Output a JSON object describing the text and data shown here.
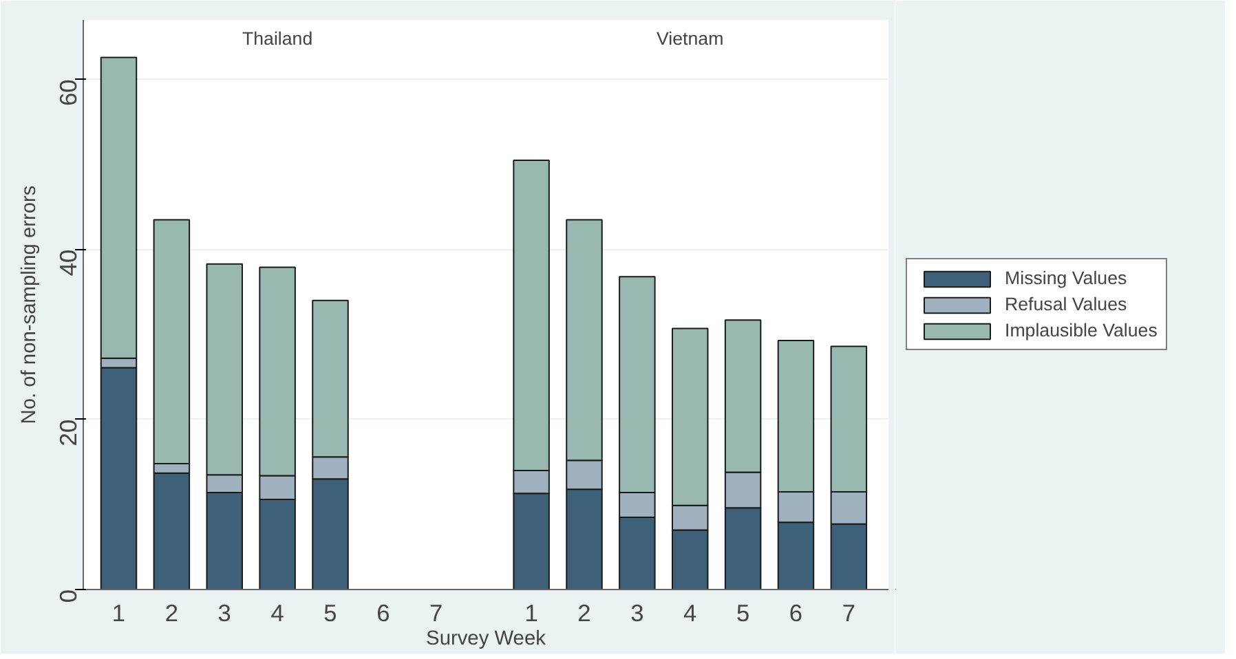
{
  "chart_data": {
    "type": "bar",
    "stacked": true,
    "xlabel": "Survey Week",
    "ylabel": "No. of non-sampling errors",
    "categories": [
      "1",
      "2",
      "3",
      "4",
      "5",
      "6",
      "7",
      "1",
      "2",
      "3",
      "4",
      "5",
      "6",
      "7"
    ],
    "series": [
      {
        "name": "Missing Values",
        "color": "#3e6079",
        "values": [
          26.1,
          13.7,
          11.4,
          10.6,
          13.0,
          null,
          null,
          11.3,
          11.8,
          8.5,
          7.0,
          9.6,
          7.9,
          7.7
        ]
      },
      {
        "name": "Refusal Values",
        "color": "#9fb0bf",
        "values": [
          1.1,
          1.1,
          2.1,
          2.8,
          2.6,
          null,
          null,
          2.7,
          3.4,
          2.9,
          2.9,
          4.2,
          3.6,
          3.8
        ]
      },
      {
        "name": "Implausible Values",
        "color": "#98b8b0",
        "values": [
          35.4,
          28.7,
          24.8,
          24.5,
          18.4,
          null,
          null,
          36.5,
          28.3,
          25.4,
          20.8,
          17.9,
          17.8,
          17.1
        ]
      }
    ],
    "annotations": [
      "Thailand",
      "Vietnam"
    ],
    "ylim": [
      0,
      67
    ],
    "yticks": [
      0,
      20,
      40,
      60
    ],
    "grid": "y",
    "legend": "right"
  }
}
